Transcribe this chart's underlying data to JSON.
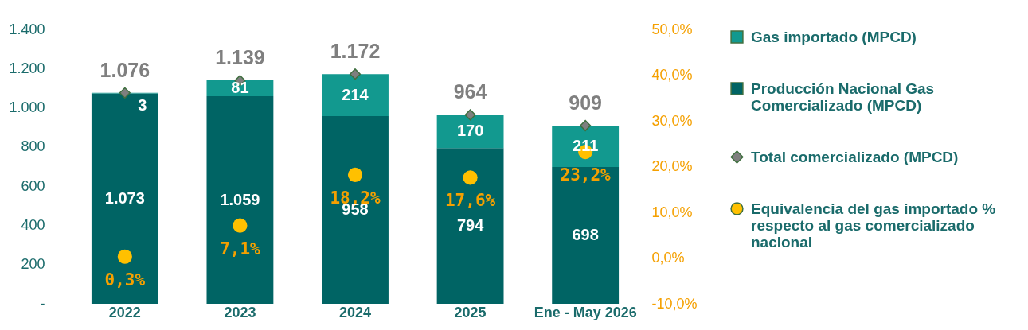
{
  "chart_data": {
    "type": "bar",
    "stacked": true,
    "categories": [
      "2022",
      "2023",
      "2024",
      "2025",
      "Ene - May 2026"
    ],
    "series": [
      {
        "name": "Producción Nacional Gas Comercializado (MPCD)",
        "type": "bar",
        "color": "#006464",
        "values": [
          1073,
          1059,
          958,
          794,
          698
        ],
        "value_labels": [
          "1.073",
          "1.059",
          "958",
          "794",
          "698"
        ]
      },
      {
        "name": "Gas importado (MPCD)",
        "type": "bar",
        "color": "#12998f",
        "values": [
          3,
          81,
          214,
          170,
          211
        ],
        "value_labels": [
          "3",
          "81",
          "214",
          "170",
          "211"
        ]
      },
      {
        "name": "Total comercializado (MPCD)",
        "type": "scatter",
        "marker": "diamond",
        "color": "#7f7f7f",
        "values": [
          1076,
          1139,
          1172,
          964,
          909
        ],
        "value_labels": [
          "1.076",
          "1.139",
          "1.172",
          "964",
          "909"
        ]
      },
      {
        "name": "Equivalencia del gas importado % respecto al gas comercializado nacional",
        "type": "scatter",
        "marker": "circle",
        "axis": "y2",
        "color": "#ffc000",
        "values": [
          0.3,
          7.1,
          18.2,
          17.6,
          23.2
        ],
        "value_labels": [
          "0,3%",
          "7,1%",
          "18,2%",
          "17,6%",
          "23,2%"
        ]
      }
    ],
    "ylim": [
      0,
      1400
    ],
    "yticks": [
      {
        "value": 0,
        "label": "-"
      },
      200,
      400,
      600,
      800,
      {
        "value": 1000,
        "label": "1.000"
      },
      {
        "value": 1200,
        "label": "1.200"
      },
      {
        "value": 1400,
        "label": "1.400"
      }
    ],
    "y2lim": [
      -10,
      50
    ],
    "y2ticks": [
      {
        "value": -10,
        "label": "-10,0%"
      },
      {
        "value": 0,
        "label": "0,0%"
      },
      {
        "value": 10,
        "label": "10,0%"
      },
      {
        "value": 20,
        "label": "20,0%"
      },
      {
        "value": 30,
        "label": "30,0%"
      },
      {
        "value": 40,
        "label": "40,0%"
      },
      {
        "value": 50,
        "label": "50,0%"
      }
    ],
    "grid": false,
    "legend": "right"
  }
}
